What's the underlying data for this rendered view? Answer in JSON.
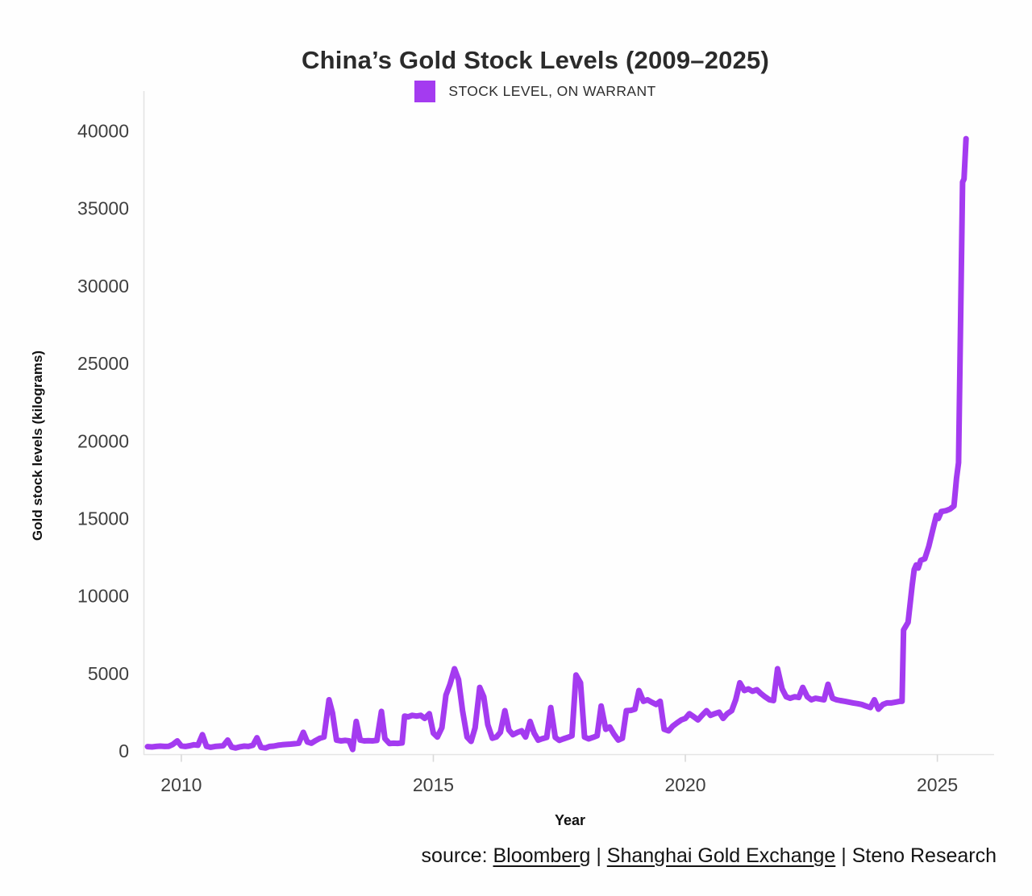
{
  "title": "China’s Gold Stock Levels (2009–2025)",
  "legend": {
    "label": "STOCK LEVEL, ON WARRANT",
    "color": "#a43bf0"
  },
  "axes": {
    "y_label": "Gold stock levels (kilograms)",
    "x_label": "Year"
  },
  "source": {
    "parts": [
      {
        "text": "source: ",
        "link": false
      },
      {
        "text": "Bloomberg",
        "link": true
      },
      {
        "text": " | ",
        "link": false
      },
      {
        "text": "Shanghai Gold Exchange",
        "link": true
      },
      {
        "text": " | Steno Research",
        "link": false
      }
    ]
  },
  "colors": {
    "line": "#a43bf0",
    "axis_line": "#e4e4e4",
    "tick_mark": "#d9d9d9",
    "tick_label": "#3f3f3f",
    "title_text": "#2b2b2b"
  },
  "chart_data": {
    "type": "line",
    "title": "China’s Gold Stock Levels (2009–2025)",
    "xlabel": "Year",
    "ylabel": "Gold stock levels (kilograms)",
    "xlim": [
      2009.25,
      2026.11
    ],
    "ylim": [
      0,
      40000
    ],
    "x_ticks": [
      2010,
      2015,
      2020,
      2025
    ],
    "y_ticks": [
      0,
      5000,
      10000,
      15000,
      20000,
      25000,
      30000,
      35000,
      40000
    ],
    "grid": false,
    "legend_position": "top-center",
    "series": [
      {
        "name": "STOCK LEVEL, ON WARRANT",
        "color": "#a43bf0",
        "points": [
          [
            2009.33,
            280
          ],
          [
            2009.42,
            260
          ],
          [
            2009.5,
            290
          ],
          [
            2009.58,
            310
          ],
          [
            2009.67,
            290
          ],
          [
            2009.75,
            300
          ],
          [
            2009.83,
            420
          ],
          [
            2009.92,
            650
          ],
          [
            2010.0,
            320
          ],
          [
            2010.08,
            290
          ],
          [
            2010.17,
            340
          ],
          [
            2010.25,
            400
          ],
          [
            2010.33,
            370
          ],
          [
            2010.42,
            1050
          ],
          [
            2010.5,
            300
          ],
          [
            2010.58,
            240
          ],
          [
            2010.67,
            290
          ],
          [
            2010.75,
            310
          ],
          [
            2010.83,
            340
          ],
          [
            2010.92,
            700
          ],
          [
            2011.0,
            250
          ],
          [
            2011.08,
            190
          ],
          [
            2011.17,
            270
          ],
          [
            2011.25,
            310
          ],
          [
            2011.33,
            290
          ],
          [
            2011.42,
            370
          ],
          [
            2011.5,
            850
          ],
          [
            2011.58,
            240
          ],
          [
            2011.67,
            190
          ],
          [
            2011.75,
            290
          ],
          [
            2011.83,
            310
          ],
          [
            2011.92,
            370
          ],
          [
            2012.0,
            400
          ],
          [
            2012.08,
            420
          ],
          [
            2012.17,
            440
          ],
          [
            2012.25,
            470
          ],
          [
            2012.33,
            500
          ],
          [
            2012.42,
            1200
          ],
          [
            2012.5,
            580
          ],
          [
            2012.58,
            500
          ],
          [
            2012.67,
            680
          ],
          [
            2012.75,
            820
          ],
          [
            2012.83,
            900
          ],
          [
            2012.93,
            3300
          ],
          [
            2013.0,
            2450
          ],
          [
            2013.08,
            700
          ],
          [
            2013.17,
            650
          ],
          [
            2013.25,
            680
          ],
          [
            2013.33,
            650
          ],
          [
            2013.4,
            100
          ],
          [
            2013.47,
            1900
          ],
          [
            2013.55,
            700
          ],
          [
            2013.63,
            650
          ],
          [
            2013.71,
            660
          ],
          [
            2013.79,
            650
          ],
          [
            2013.88,
            680
          ],
          [
            2013.97,
            2550
          ],
          [
            2014.04,
            800
          ],
          [
            2014.13,
            480
          ],
          [
            2014.21,
            500
          ],
          [
            2014.29,
            490
          ],
          [
            2014.38,
            520
          ],
          [
            2014.43,
            2250
          ],
          [
            2014.5,
            2200
          ],
          [
            2014.58,
            2300
          ],
          [
            2014.67,
            2250
          ],
          [
            2014.75,
            2300
          ],
          [
            2014.83,
            2100
          ],
          [
            2014.92,
            2400
          ],
          [
            2015.0,
            1150
          ],
          [
            2015.08,
            900
          ],
          [
            2015.17,
            1500
          ],
          [
            2015.25,
            3600
          ],
          [
            2015.33,
            4300
          ],
          [
            2015.42,
            5300
          ],
          [
            2015.5,
            4600
          ],
          [
            2015.58,
            2600
          ],
          [
            2015.67,
            900
          ],
          [
            2015.75,
            620
          ],
          [
            2015.83,
            1500
          ],
          [
            2015.92,
            4100
          ],
          [
            2016.0,
            3500
          ],
          [
            2016.08,
            1700
          ],
          [
            2016.17,
            820
          ],
          [
            2016.25,
            900
          ],
          [
            2016.33,
            1200
          ],
          [
            2016.42,
            2600
          ],
          [
            2016.5,
            1350
          ],
          [
            2016.58,
            1050
          ],
          [
            2016.67,
            1200
          ],
          [
            2016.75,
            1300
          ],
          [
            2016.83,
            900
          ],
          [
            2016.92,
            1900
          ],
          [
            2017.0,
            1150
          ],
          [
            2017.08,
            700
          ],
          [
            2017.17,
            800
          ],
          [
            2017.25,
            880
          ],
          [
            2017.33,
            2800
          ],
          [
            2017.42,
            880
          ],
          [
            2017.5,
            680
          ],
          [
            2017.58,
            780
          ],
          [
            2017.67,
            880
          ],
          [
            2017.75,
            980
          ],
          [
            2017.83,
            4900
          ],
          [
            2017.92,
            4400
          ],
          [
            2018.0,
            900
          ],
          [
            2018.08,
            780
          ],
          [
            2018.17,
            880
          ],
          [
            2018.25,
            980
          ],
          [
            2018.33,
            2900
          ],
          [
            2018.42,
            1400
          ],
          [
            2018.5,
            1550
          ],
          [
            2018.58,
            1100
          ],
          [
            2018.67,
            700
          ],
          [
            2018.75,
            820
          ],
          [
            2018.83,
            2600
          ],
          [
            2018.92,
            2620
          ],
          [
            2019.0,
            2700
          ],
          [
            2019.08,
            3900
          ],
          [
            2019.17,
            3200
          ],
          [
            2019.25,
            3300
          ],
          [
            2019.33,
            3150
          ],
          [
            2019.42,
            3000
          ],
          [
            2019.5,
            3200
          ],
          [
            2019.58,
            1400
          ],
          [
            2019.67,
            1300
          ],
          [
            2019.75,
            1600
          ],
          [
            2019.83,
            1800
          ],
          [
            2019.92,
            2000
          ],
          [
            2020.0,
            2100
          ],
          [
            2020.08,
            2400
          ],
          [
            2020.17,
            2200
          ],
          [
            2020.25,
            2000
          ],
          [
            2020.33,
            2300
          ],
          [
            2020.42,
            2600
          ],
          [
            2020.5,
            2300
          ],
          [
            2020.58,
            2400
          ],
          [
            2020.67,
            2500
          ],
          [
            2020.75,
            2100
          ],
          [
            2020.83,
            2400
          ],
          [
            2020.92,
            2600
          ],
          [
            2021.0,
            3300
          ],
          [
            2021.08,
            4400
          ],
          [
            2021.17,
            3900
          ],
          [
            2021.25,
            4000
          ],
          [
            2021.33,
            3850
          ],
          [
            2021.42,
            3950
          ],
          [
            2021.5,
            3700
          ],
          [
            2021.58,
            3500
          ],
          [
            2021.67,
            3300
          ],
          [
            2021.75,
            3250
          ],
          [
            2021.83,
            5300
          ],
          [
            2021.92,
            4000
          ],
          [
            2022.0,
            3500
          ],
          [
            2022.08,
            3400
          ],
          [
            2022.17,
            3500
          ],
          [
            2022.25,
            3450
          ],
          [
            2022.33,
            4100
          ],
          [
            2022.42,
            3500
          ],
          [
            2022.5,
            3300
          ],
          [
            2022.58,
            3400
          ],
          [
            2022.67,
            3350
          ],
          [
            2022.75,
            3300
          ],
          [
            2022.83,
            4300
          ],
          [
            2022.92,
            3400
          ],
          [
            2023.0,
            3300
          ],
          [
            2023.08,
            3250
          ],
          [
            2023.17,
            3200
          ],
          [
            2023.25,
            3150
          ],
          [
            2023.33,
            3100
          ],
          [
            2023.42,
            3050
          ],
          [
            2023.5,
            3000
          ],
          [
            2023.58,
            2900
          ],
          [
            2023.67,
            2800
          ],
          [
            2023.75,
            3300
          ],
          [
            2023.83,
            2700
          ],
          [
            2023.92,
            3000
          ],
          [
            2024.0,
            3100
          ],
          [
            2024.08,
            3100
          ],
          [
            2024.17,
            3150
          ],
          [
            2024.25,
            3200
          ],
          [
            2024.3,
            3200
          ],
          [
            2024.33,
            7800
          ],
          [
            2024.42,
            8300
          ],
          [
            2024.5,
            10700
          ],
          [
            2024.54,
            11700
          ],
          [
            2024.58,
            12000
          ],
          [
            2024.62,
            11800
          ],
          [
            2024.67,
            12300
          ],
          [
            2024.75,
            12400
          ],
          [
            2024.83,
            13200
          ],
          [
            2024.92,
            14400
          ],
          [
            2024.98,
            15200
          ],
          [
            2025.02,
            15000
          ],
          [
            2025.08,
            15450
          ],
          [
            2025.17,
            15500
          ],
          [
            2025.25,
            15600
          ],
          [
            2025.33,
            15800
          ],
          [
            2025.38,
            17600
          ],
          [
            2025.42,
            18600
          ],
          [
            2025.5,
            36700
          ],
          [
            2025.53,
            36900
          ],
          [
            2025.57,
            39500
          ]
        ]
      }
    ]
  }
}
